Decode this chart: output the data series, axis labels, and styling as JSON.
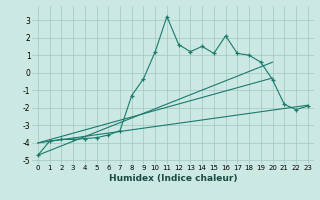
{
  "xlabel": "Humidex (Indice chaleur)",
  "line_color": "#1a7a6e",
  "bg_color": "#cce8e2",
  "grid_color": "#a0c8c0",
  "ylim": [
    -5.2,
    3.8
  ],
  "xlim": [
    -0.5,
    23.5
  ],
  "x": [
    0,
    1,
    2,
    3,
    4,
    5,
    6,
    7,
    8,
    9,
    10,
    11,
    12,
    13,
    14,
    15,
    16,
    17,
    18,
    19,
    20,
    21,
    22,
    23
  ],
  "main_y": [
    -4.7,
    -3.9,
    -3.8,
    -3.8,
    -3.75,
    -3.7,
    -3.55,
    -3.3,
    -1.3,
    -0.35,
    1.2,
    3.2,
    1.6,
    1.2,
    1.5,
    1.1,
    2.1,
    1.1,
    1.0,
    0.6,
    -0.4,
    -1.8,
    -2.1,
    -1.9
  ],
  "reg1": {
    "x": [
      0,
      23
    ],
    "y": [
      -4.0,
      -1.85
    ]
  },
  "reg2": {
    "x": [
      0,
      20
    ],
    "y": [
      -4.0,
      -0.3
    ]
  },
  "reg3": {
    "x": [
      0,
      20
    ],
    "y": [
      -4.7,
      0.6
    ]
  },
  "yticks": [
    -5,
    -4,
    -3,
    -2,
    -1,
    0,
    1,
    2,
    3
  ],
  "xticks": [
    0,
    1,
    2,
    3,
    4,
    5,
    6,
    7,
    8,
    9,
    10,
    11,
    12,
    13,
    14,
    15,
    16,
    17,
    18,
    19,
    20,
    21,
    22,
    23
  ]
}
